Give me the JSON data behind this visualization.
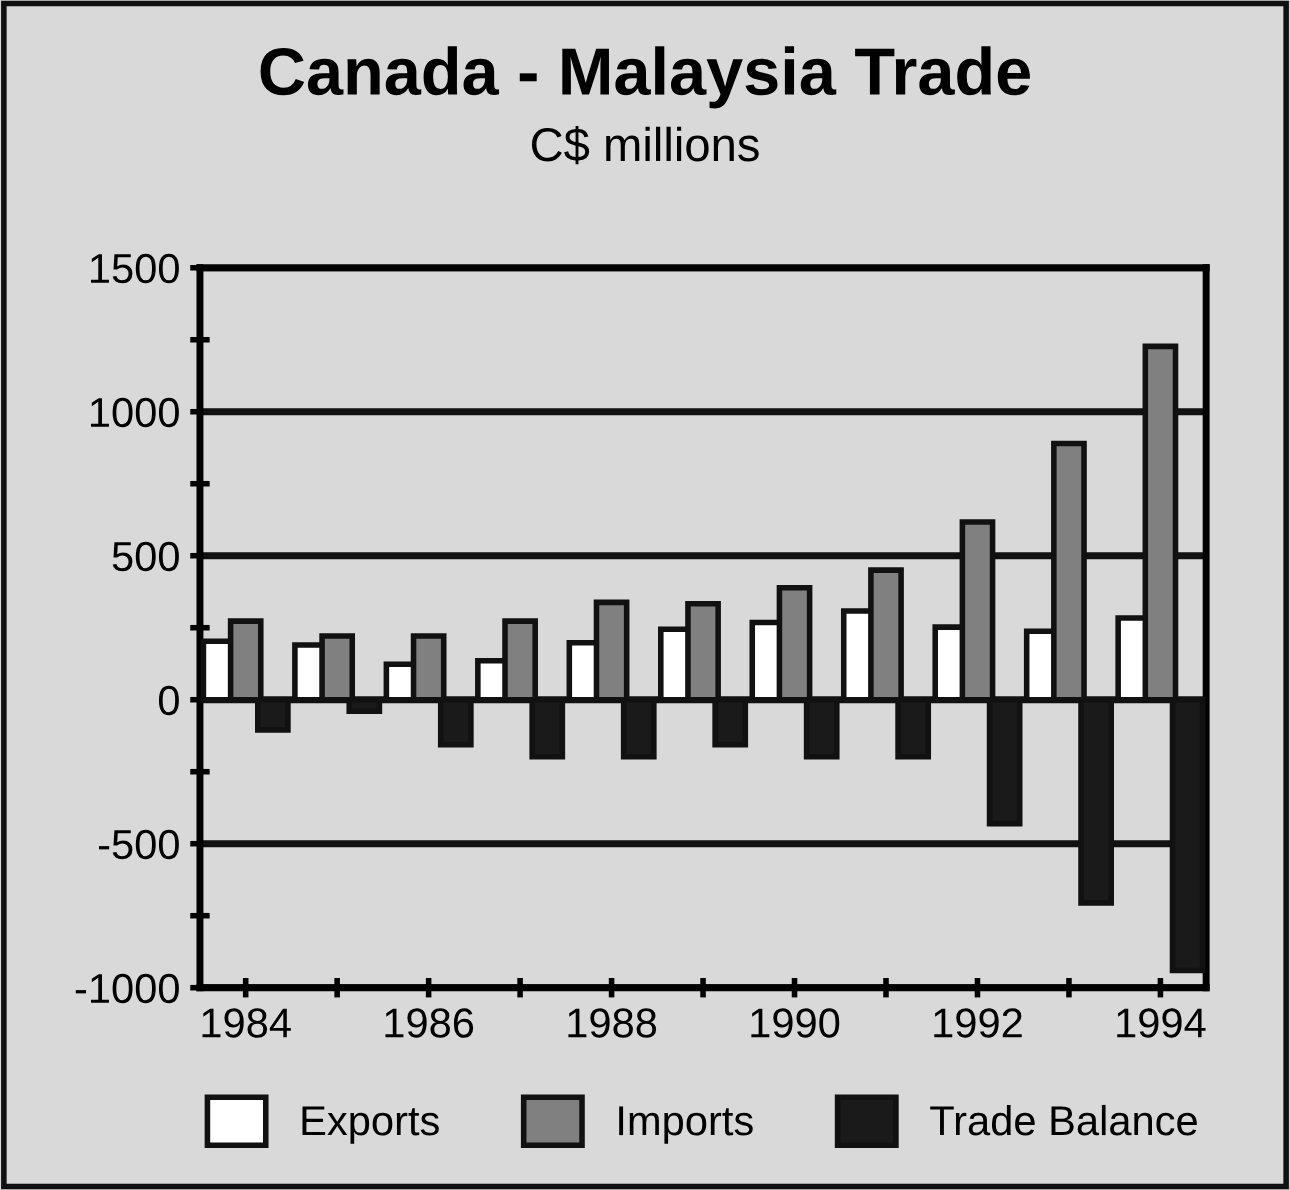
{
  "chart_data": {
    "type": "bar",
    "title": "Canada - Malaysia Trade",
    "subtitle": "C$ millions",
    "categories": [
      "1984",
      null,
      "1986",
      null,
      "1988",
      null,
      "1990",
      null,
      "1992",
      null,
      "1994"
    ],
    "series": [
      {
        "name": "Exports",
        "color": "#ffffff",
        "values": [
          203,
          190,
          123,
          135,
          198,
          245,
          268,
          308,
          252,
          238,
          284
        ]
      },
      {
        "name": "Imports",
        "color": "#808080",
        "values": [
          273,
          221,
          221,
          273,
          338,
          333,
          389,
          450,
          617,
          890,
          1227
        ]
      },
      {
        "name": "Trade Balance",
        "color": "#1a1a1a",
        "values": [
          -105,
          -40,
          -156,
          -198,
          -198,
          -156,
          -198,
          -198,
          -431,
          -706,
          -940
        ]
      }
    ],
    "ylim": [
      -1000,
      1500
    ],
    "yticks": [
      -1000,
      {
        "value": -750,
        "label": null
      },
      -500,
      {
        "value": -250,
        "label": null
      },
      0,
      {
        "value": 250,
        "label": null
      },
      500,
      {
        "value": 750,
        "label": null
      },
      1000,
      {
        "value": 1250,
        "label": null
      },
      1500
    ],
    "grid": "y",
    "legend": "bottom"
  }
}
